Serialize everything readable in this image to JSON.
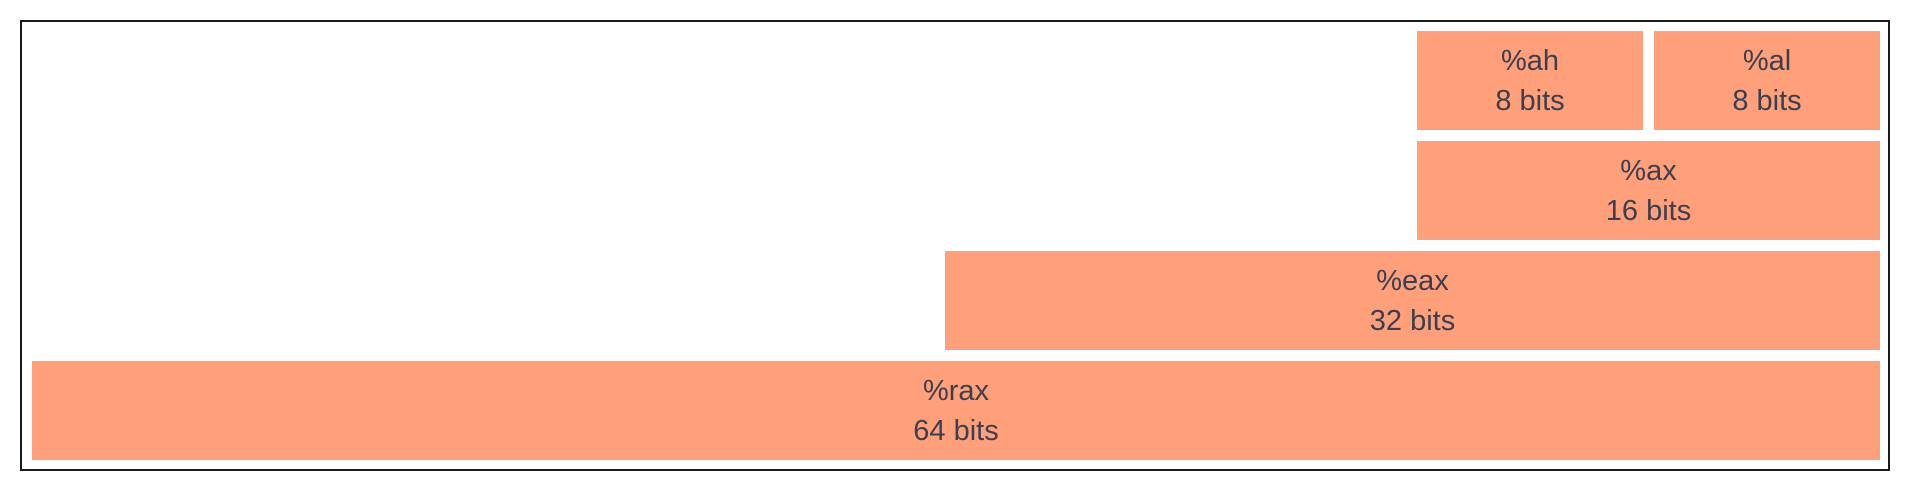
{
  "colors": {
    "block_fill": "#ffa07a",
    "text": "#3b3f4f",
    "border": "#1a1a1a"
  },
  "registers": {
    "ah": {
      "name": "%ah",
      "size": "8 bits"
    },
    "al": {
      "name": "%al",
      "size": "8 bits"
    },
    "ax": {
      "name": "%ax",
      "size": "16 bits"
    },
    "eax": {
      "name": "%eax",
      "size": "32 bits"
    },
    "rax": {
      "name": "%rax",
      "size": "64 bits"
    }
  }
}
